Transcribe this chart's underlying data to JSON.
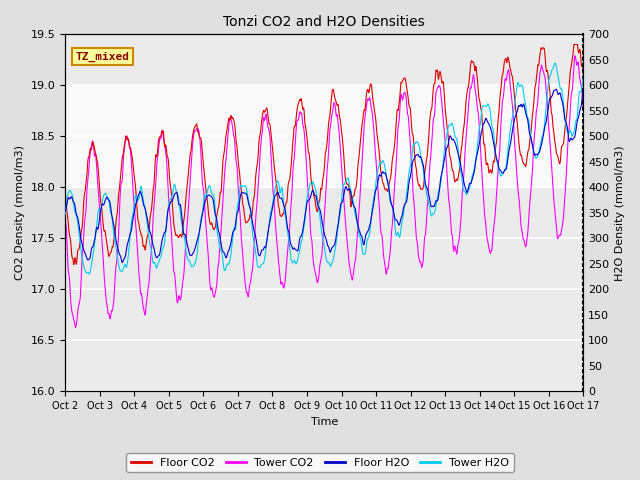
{
  "title": "Tonzi CO2 and H2O Densities",
  "xlabel": "Time",
  "ylabel_left": "CO2 Density (mmol/m3)",
  "ylabel_right": "H2O Density (mmol/m3)",
  "tz_label": "TZ_mixed",
  "co2_ylim": [
    16.0,
    19.5
  ],
  "h2o_ylim": [
    0,
    700
  ],
  "co2_yticks": [
    16.0,
    16.5,
    17.0,
    17.5,
    18.0,
    18.5,
    19.0,
    19.5
  ],
  "h2o_yticks": [
    0,
    50,
    100,
    150,
    200,
    250,
    300,
    350,
    400,
    450,
    500,
    550,
    600,
    650,
    700
  ],
  "n_days": 15,
  "n_points": 2000,
  "floor_co2_color": "#dd0000",
  "tower_co2_color": "#ff00ff",
  "floor_h2o_color": "#0000cc",
  "tower_h2o_color": "#00ccee",
  "background_color": "#e0e0e0",
  "plot_bg_color": "#ebebeb",
  "tz_box_bg": "#ffff99",
  "tz_box_edge": "#cc8800",
  "tz_text_color": "#880000",
  "x_tick_labels": [
    "Oct 2",
    "Oct 3",
    "Oct 4",
    "Oct 5",
    "Oct 6",
    "Oct 7",
    "Oct 8",
    "Oct 9",
    "Oct 10",
    "Oct 11",
    "Oct 12",
    "Oct 13",
    "Oct 14",
    "Oct 15",
    "Oct 16",
    "Oct 17"
  ],
  "legend_labels": [
    "Floor CO2",
    "Tower CO2",
    "Floor H2O",
    "Tower H2O"
  ],
  "legend_colors": [
    "#dd0000",
    "#ff00ff",
    "#0000cc",
    "#00ccee"
  ],
  "linewidth": 0.8,
  "shaded_co2_region": [
    18.0,
    19.0
  ],
  "figsize": [
    6.4,
    4.8
  ],
  "dpi": 100
}
